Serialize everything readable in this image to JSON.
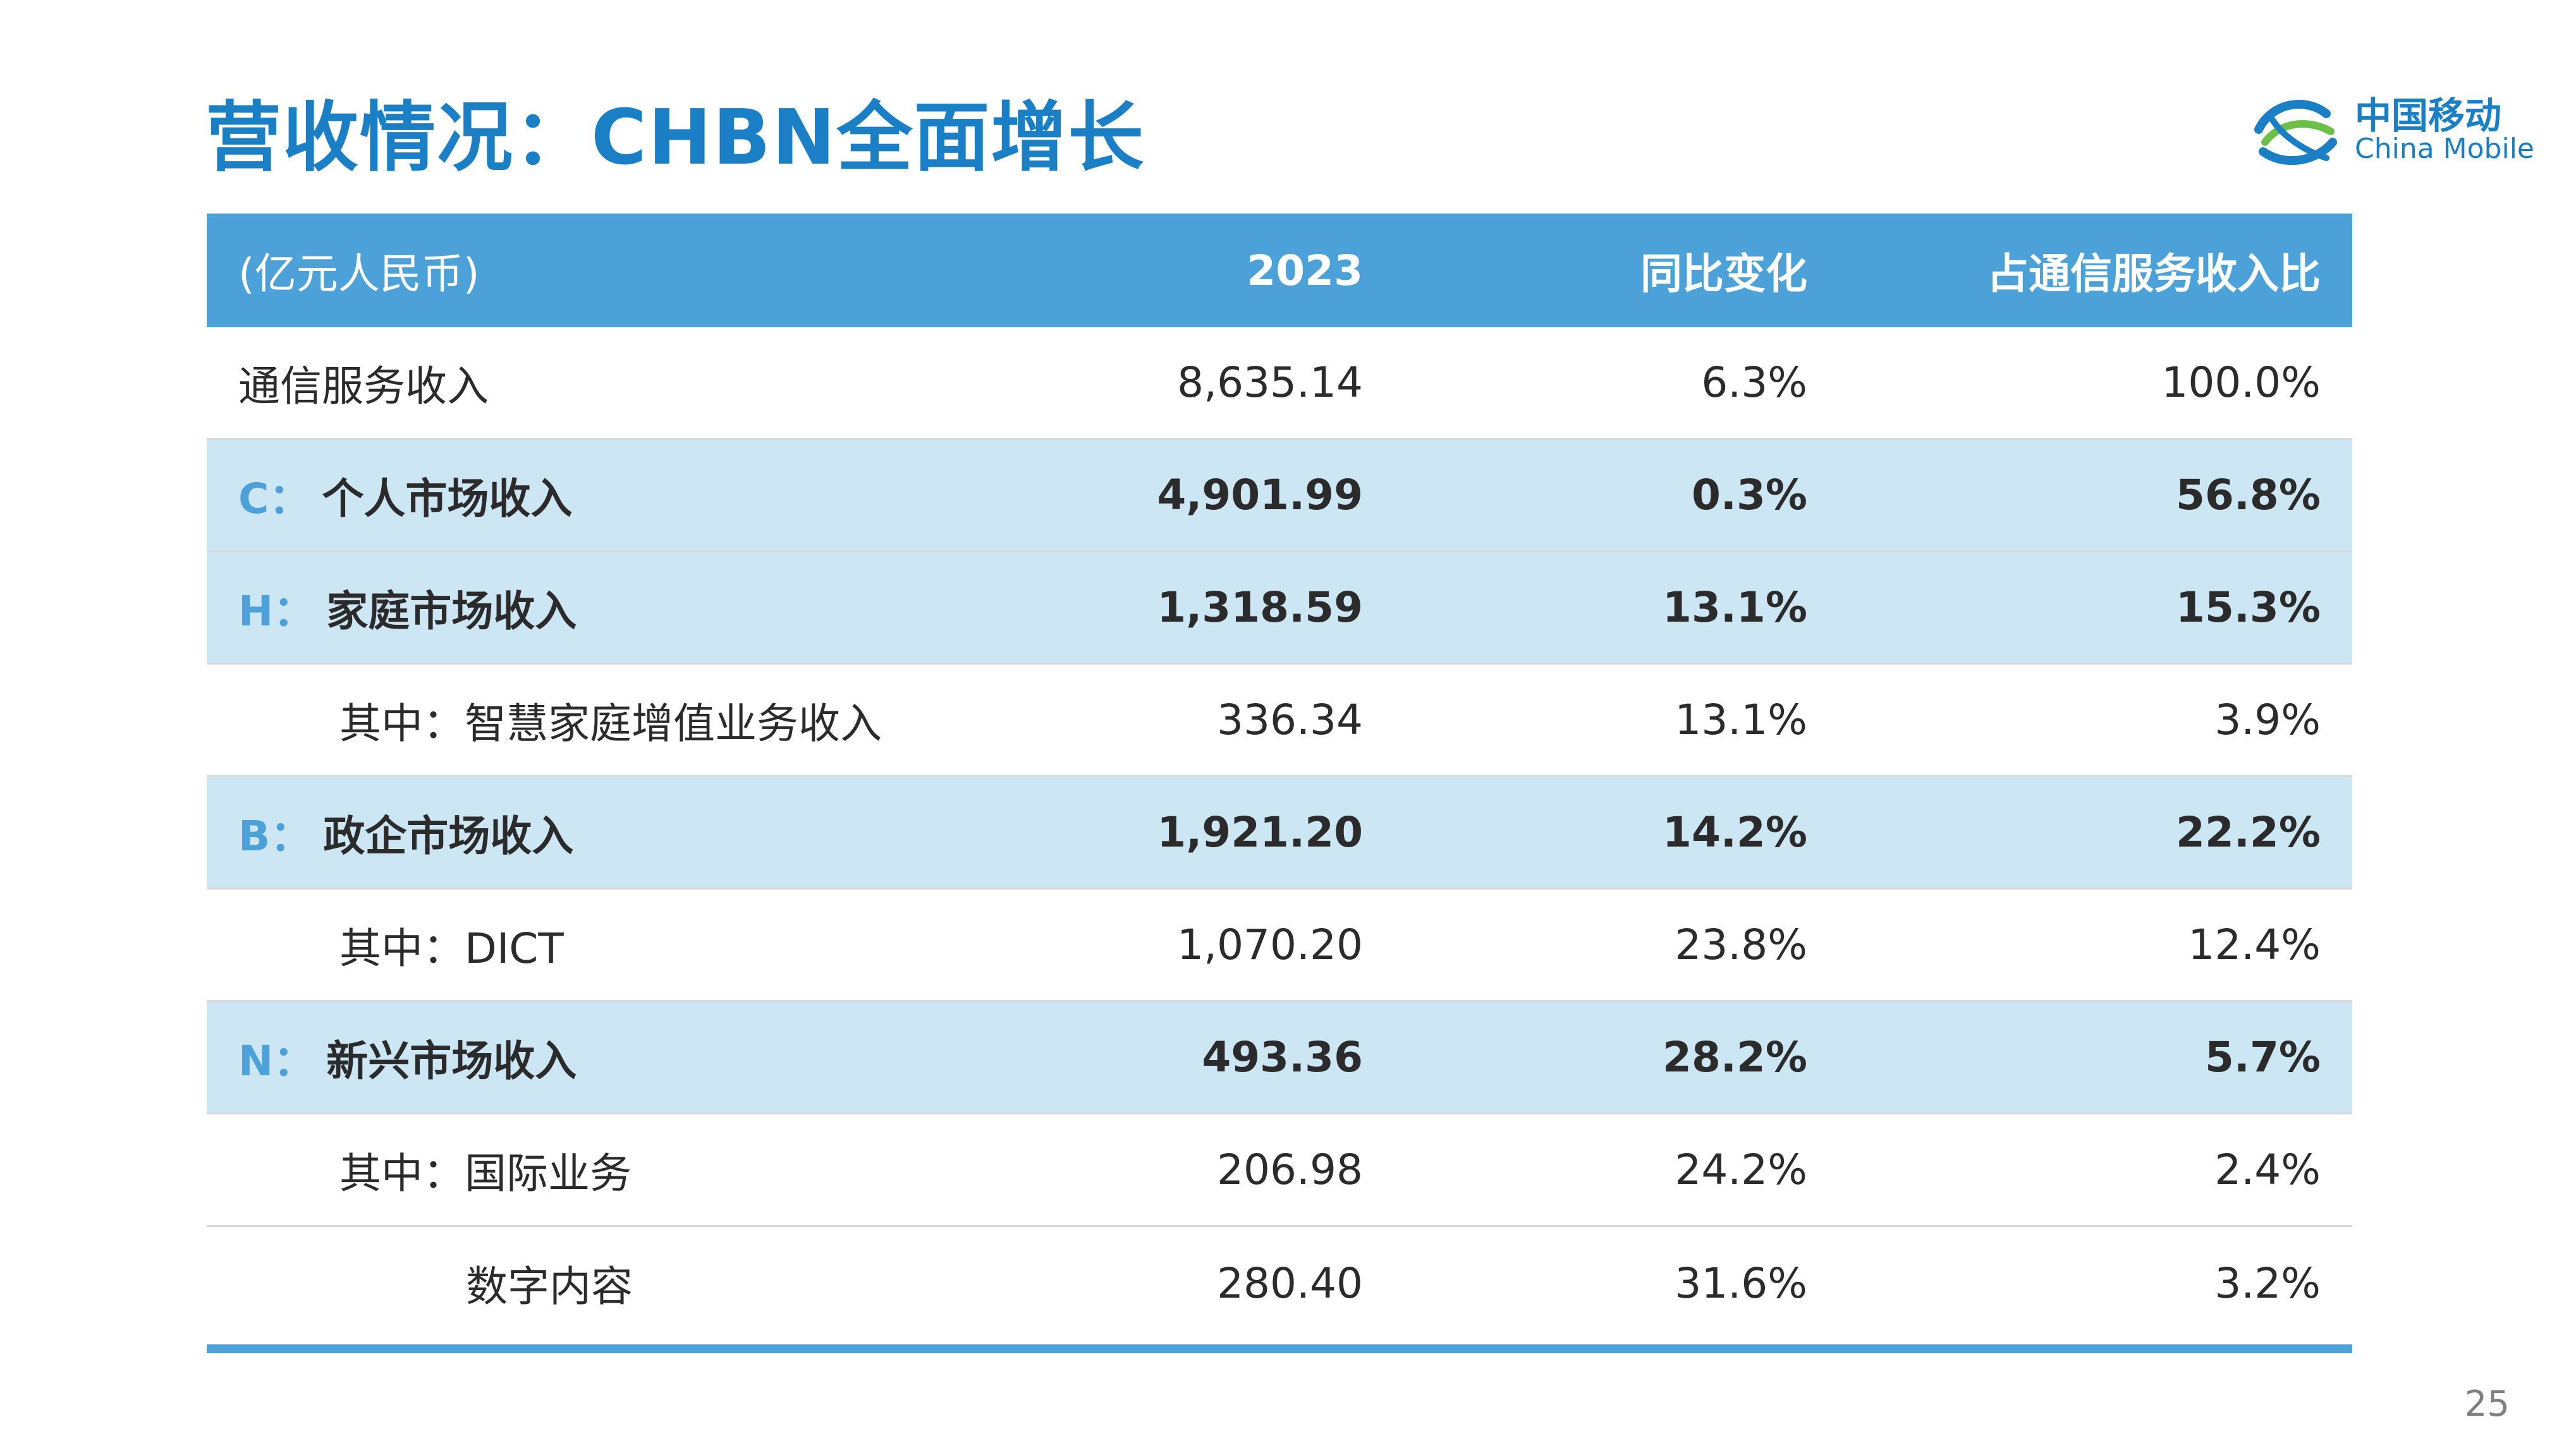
{
  "title": "营收情况：CHBN全面增长",
  "logo": {
    "cn": "中国移动",
    "en": "China Mobile"
  },
  "table": {
    "headers": [
      "(亿元人民币)",
      "2023",
      "同比变化",
      "占通信服务收入比"
    ],
    "rows": [
      {
        "prefix": "",
        "label": "通信服务收入",
        "value": "8,635.14",
        "yoy": "6.3%",
        "share": "100.0%"
      },
      {
        "prefix": "C：",
        "label": "个人市场收入",
        "value": "4,901.99",
        "yoy": "0.3%",
        "share": "56.8%"
      },
      {
        "prefix": "H：",
        "label": "家庭市场收入",
        "value": "1,318.59",
        "yoy": "13.1%",
        "share": "15.3%"
      },
      {
        "prefix": "",
        "label": "其中：智慧家庭增值业务收入",
        "value": "336.34",
        "yoy": "13.1%",
        "share": "3.9%"
      },
      {
        "prefix": "B：",
        "label": "政企市场收入",
        "value": "1,921.20",
        "yoy": "14.2%",
        "share": "22.2%"
      },
      {
        "prefix": "",
        "label": "其中：DICT",
        "value": "1,070.20",
        "yoy": "23.8%",
        "share": "12.4%"
      },
      {
        "prefix": "N：",
        "label": "新兴市场收入",
        "value": "493.36",
        "yoy": "28.2%",
        "share": "5.7%"
      },
      {
        "prefix": "",
        "label": "其中：国际业务",
        "value": "206.98",
        "yoy": "24.2%",
        "share": "2.4%"
      },
      {
        "prefix": "",
        "label": "数字内容",
        "value": "280.40",
        "yoy": "31.6%",
        "share": "3.2%"
      }
    ]
  },
  "page_number": "25",
  "colors": {
    "accent": "#1a7fc4",
    "header_bg": "#4ba1d8",
    "highlight_bg": "#cde6f4"
  }
}
